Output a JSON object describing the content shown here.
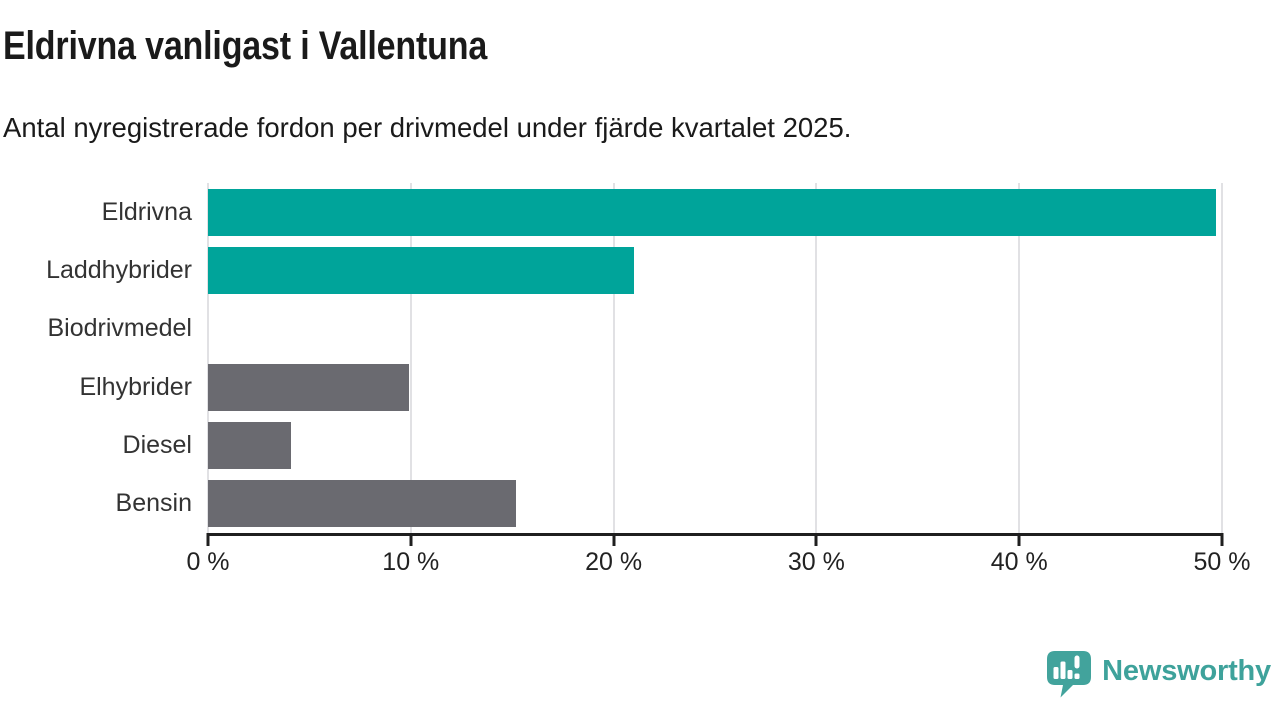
{
  "header": {
    "title": "Eldrivna vanligast i Vallentuna",
    "subtitle": "Antal nyregistrerade fordon per drivmedel under fjärde kvartalet 2025."
  },
  "chart_data": {
    "type": "bar",
    "orientation": "horizontal",
    "title": "Eldrivna vanligast i Vallentuna",
    "subtitle": "Antal nyregistrerade fordon per drivmedel under fjärde kvartalet 2025.",
    "categories": [
      "Eldrivna",
      "Laddhybrider",
      "Biodrivmedel",
      "Elhybrider",
      "Diesel",
      "Bensin"
    ],
    "values": [
      49.7,
      21,
      0,
      9.9,
      4.1,
      15.2
    ],
    "unit": "%",
    "bar_colors": [
      "#00a49a",
      "#00a49a",
      "#6a6a70",
      "#6a6a70",
      "#6a6a70",
      "#6a6a70"
    ],
    "xlim": [
      0,
      50
    ],
    "x_ticks": [
      0,
      10,
      20,
      30,
      40,
      50
    ],
    "x_tick_labels": [
      "0 %",
      "10 %",
      "20 %",
      "30 %",
      "40 %",
      "50 %"
    ],
    "xlabel": "",
    "ylabel": "",
    "grid": "vertical-only",
    "legend": "none"
  },
  "footer": {
    "brand": "Newsworthy"
  },
  "colors": {
    "accent_teal": "#00a49a",
    "neutral_gray": "#6a6a70",
    "logo_teal": "#42a39c",
    "gridline": "#e1e1e4",
    "axis": "#1f1f1f",
    "heading_text": "#1a1a1a",
    "label_text": "#333333"
  }
}
